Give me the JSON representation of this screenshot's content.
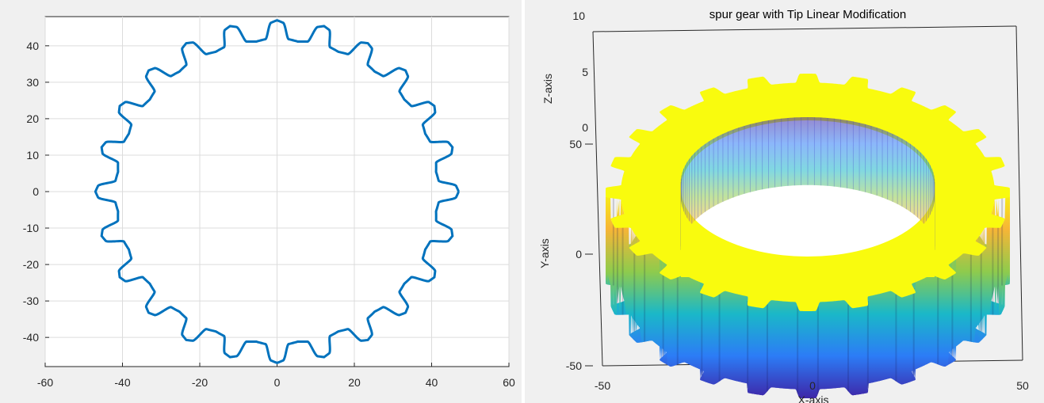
{
  "chart_data": [
    {
      "type": "scatter",
      "description_marks": "gear outline, 24 teeth",
      "series": [
        {
          "color": "#0072bd",
          "teeth": 24,
          "tip_radius": 47,
          "root_radius": 41.5
        }
      ],
      "xlim": [
        -60,
        60
      ],
      "ylim": [
        -48,
        48
      ],
      "xticks": [
        "-60",
        "-40",
        "-20",
        "0",
        "20",
        "40",
        "60"
      ],
      "yticks": [
        "40",
        "30",
        "20",
        "10",
        "0",
        "-10",
        "-20",
        "-30",
        "-40"
      ],
      "grid": true
    },
    {
      "type": "surface",
      "title": "spur gear with Tip Linear Modification",
      "xlabel": "X-axis",
      "ylabel": "Y-axis",
      "zlabel": "Z-axis",
      "xticks": [
        "-50",
        "0",
        "50"
      ],
      "yticks": [
        "50",
        "0",
        "-50"
      ],
      "zticks": [
        "10",
        "5",
        "0"
      ],
      "teeth": 24,
      "colormap": [
        "#3e26a8",
        "#2c7cf6",
        "#1ab8c8",
        "#8fcb4c",
        "#f7b536",
        "#f9fb0e"
      ],
      "top_color": "#f9fb0e"
    }
  ]
}
